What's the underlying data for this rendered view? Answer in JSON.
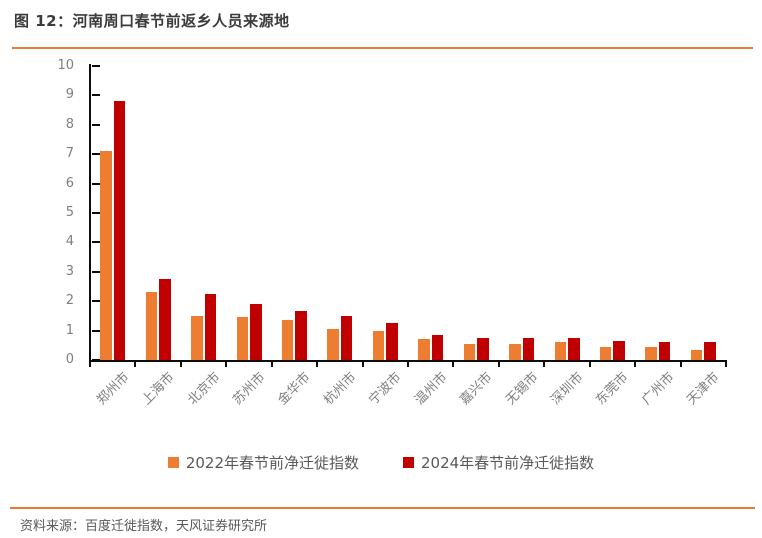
{
  "header": {
    "title": "图 12：河南周口春节前返乡人员来源地"
  },
  "footer": {
    "source": "资料来源：百度迁徙指数，天风证券研究所"
  },
  "colors": {
    "accent_orange": "#e97b2e",
    "series_2022": "#ed7d31",
    "series_2024": "#c00000",
    "axis": "#0d0d0d",
    "tick_label": "#7f7f7f",
    "legend_text": "#595959",
    "title_text": "#3b3b3b"
  },
  "chart_data": {
    "type": "bar",
    "title": "河南周口春节前返乡人员来源地",
    "xlabel": "",
    "ylabel": "",
    "categories": [
      "郑州市",
      "上海市",
      "北京市",
      "苏州市",
      "金华市",
      "杭州市",
      "宁波市",
      "温州市",
      "嘉兴市",
      "无锡市",
      "深圳市",
      "东莞市",
      "广州市",
      "天津市"
    ],
    "series": [
      {
        "name": "2022年春节前净迁徙指数",
        "color": "#ed7d31",
        "values": [
          7.1,
          2.3,
          1.5,
          1.45,
          1.35,
          1.05,
          1.0,
          0.7,
          0.55,
          0.55,
          0.6,
          0.45,
          0.45,
          0.35
        ]
      },
      {
        "name": "2024年春节前净迁徙指数",
        "color": "#c00000",
        "values": [
          8.8,
          2.75,
          2.25,
          1.9,
          1.65,
          1.5,
          1.25,
          0.85,
          0.75,
          0.75,
          0.75,
          0.65,
          0.6,
          0.6
        ]
      }
    ],
    "ylim": [
      0,
      10
    ],
    "ytick_interval": 1,
    "grid": false,
    "legend_position": "bottom"
  }
}
